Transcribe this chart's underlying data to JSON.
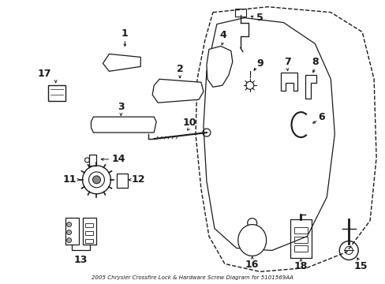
{
  "title": "2005 Chrysler Crossfire Lock & Hardware Screw Diagram for 5101569AA",
  "bg_color": "#ffffff",
  "line_color": "#1a1a1a",
  "figw": 4.89,
  "figh": 3.6,
  "dpi": 100
}
